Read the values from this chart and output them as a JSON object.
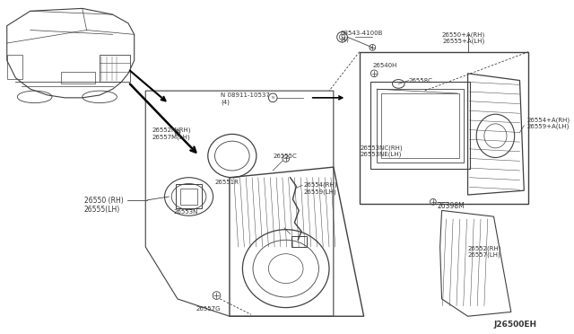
{
  "bg_color": "#ffffff",
  "line_color": "#404040",
  "text_color": "#333333",
  "diagram_id": "J26500EH",
  "labels": {
    "part1": "08543-4100B\n(4)",
    "part2_label": "N 08911-10537\n(4)",
    "part3": "26550 (RH)\n26555(LH)",
    "part4": "26552M(RH)\n26557M(LH)",
    "part5": "26551R",
    "part6": "26555C",
    "part7": "26553N",
    "part8": "26554(RH)\n26559(LH)",
    "part9": "26553NC(RH)\n26553NE(LH)",
    "part10": "26554+A(RH)\n26559+A(LH)",
    "part11": "26550+A(RH)\n26555+A(LH)",
    "part12": "26540H",
    "part13": "26558C",
    "part14": "26398M",
    "part15": "26552(RH)\n26557(LH)",
    "part16": "26557G"
  }
}
